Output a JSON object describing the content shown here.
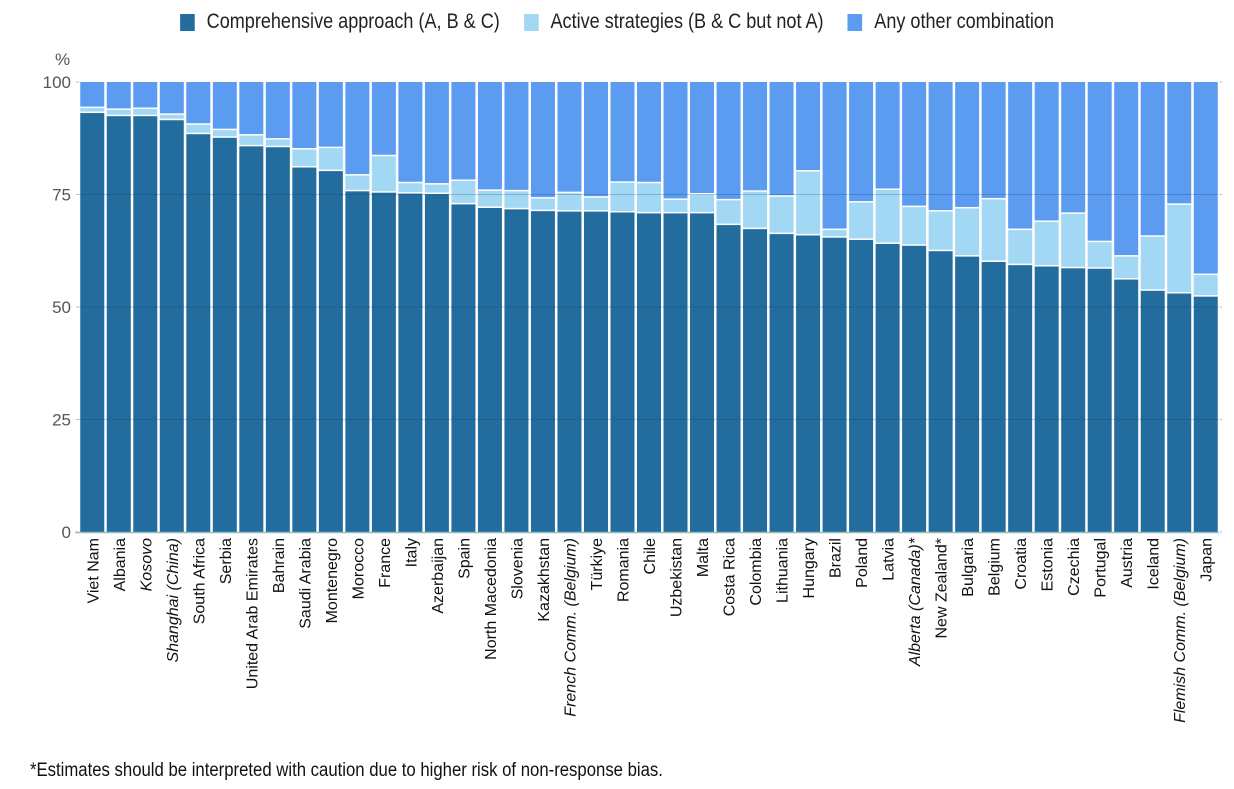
{
  "chart_data": {
    "type": "bar",
    "stacked": true,
    "title": "",
    "xlabel": "",
    "ylabel": "%",
    "ylim": [
      0,
      100
    ],
    "yticks": [
      0,
      25,
      50,
      75,
      100
    ],
    "grid": true,
    "legend_position": "top-center",
    "categories": [
      "Viet Nam",
      "Albania",
      "Kosovo",
      "Shanghai (China)",
      "South Africa",
      "Serbia",
      "United Arab Emirates",
      "Bahrain",
      "Saudi Arabia",
      "Montenegro",
      "Morocco",
      "France",
      "Italy",
      "Azerbaijan",
      "Spain",
      "North Macedonia",
      "Slovenia",
      "Kazakhstan",
      "French Comm. (Belgium)",
      "Türkiye",
      "Romania",
      "Chile",
      "Uzbekistan",
      "Malta",
      "Costa Rica",
      "Colombia",
      "Lithuania",
      "Hungary",
      "Brazil",
      "Poland",
      "Latvia",
      "Alberta (Canada)*",
      "New Zealand*",
      "Bulgaria",
      "Belgium",
      "Croatia",
      "Estonia",
      "Czechia",
      "Portugal",
      "Austria",
      "Iceland",
      "Flemish Comm. (Belgium)",
      "Japan"
    ],
    "italic_categories": [
      "Kosovo",
      "Shanghai (China)",
      "French Comm. (Belgium)",
      "Alberta (Canada)*",
      "Flemish Comm. (Belgium)"
    ],
    "series": [
      {
        "name": "Comprehensive approach (A, B & C)",
        "color": "#236C9E",
        "values": [
          93.1,
          92.4,
          92.4,
          91.5,
          88.4,
          87.6,
          85.7,
          85.5,
          81.0,
          80.2,
          75.7,
          75.4,
          75.2,
          75.1,
          72.8,
          72.0,
          71.7,
          71.3,
          71.2,
          71.2,
          71.0,
          70.8,
          70.8,
          70.8,
          68.2,
          67.3,
          66.2,
          65.9,
          65.4,
          64.9,
          64.0,
          63.6,
          62.4,
          61.2,
          60.0,
          59.3,
          59.0,
          58.6,
          58.5,
          56.1,
          53.6,
          53.0,
          52.3
        ]
      },
      {
        "name": "Active strategies (B & C but not A)",
        "color": "#A3D8F5",
        "values": [
          1.1,
          1.4,
          1.6,
          1.2,
          2.1,
          1.7,
          2.4,
          1.7,
          4.0,
          5.1,
          3.5,
          8.1,
          2.3,
          2.1,
          5.2,
          3.8,
          4.0,
          2.8,
          4.1,
          3.1,
          6.6,
          6.7,
          3.0,
          4.2,
          5.5,
          8.3,
          8.3,
          14.2,
          1.7,
          8.3,
          12.0,
          8.6,
          8.8,
          10.7,
          13.9,
          7.8,
          9.9,
          12.1,
          5.9,
          5.1,
          12.0,
          19.7,
          4.8
        ]
      },
      {
        "name": "Any other combination",
        "color": "#5B9CF0",
        "values": [
          5.8,
          6.2,
          6.0,
          7.3,
          9.5,
          10.7,
          11.9,
          12.8,
          15.0,
          14.7,
          20.8,
          16.5,
          22.5,
          22.8,
          22.0,
          24.2,
          24.3,
          25.9,
          24.7,
          25.7,
          22.4,
          22.5,
          26.2,
          25.0,
          26.3,
          24.4,
          25.5,
          19.9,
          32.9,
          26.8,
          24.0,
          27.8,
          28.8,
          28.1,
          26.1,
          32.9,
          31.1,
          29.3,
          35.6,
          38.8,
          34.4,
          27.3,
          42.9
        ]
      }
    ]
  },
  "legend": {
    "items": [
      {
        "label": "Comprehensive approach (A, B & C)",
        "color": "#236C9E"
      },
      {
        "label": "Active strategies (B & C but not A)",
        "color": "#A3D8F5"
      },
      {
        "label": "Any other combination",
        "color": "#5B9CF0"
      }
    ]
  },
  "axis": {
    "unit_label": "%"
  },
  "footnote": "*Estimates should be interpreted with caution due to higher risk of non-response bias."
}
